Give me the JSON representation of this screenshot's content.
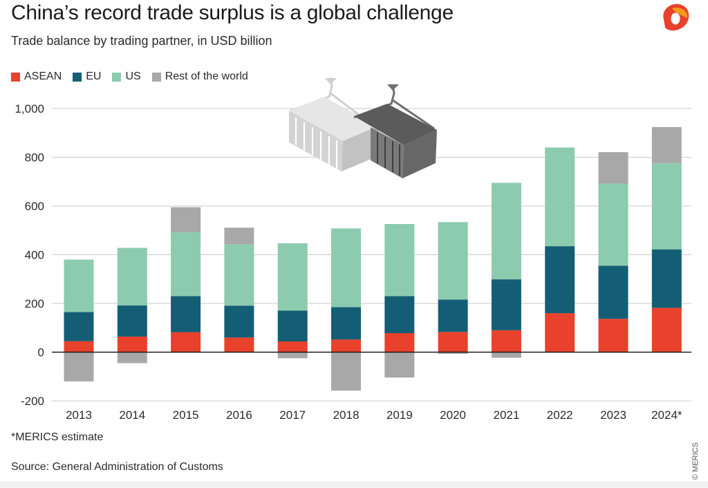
{
  "header": {
    "title": "China’s record trade surplus is a global challenge",
    "subtitle": "Trade balance by trading partner, in USD billion"
  },
  "footer": {
    "footnote": "*MERICS estimate",
    "source": "Source: General Administration of Customs",
    "copyright": "© MERICS"
  },
  "colors": {
    "ASEAN": "#e8412c",
    "EU": "#135e75",
    "US": "#8ccbae",
    "Rest of the world": "#a8a8a8"
  },
  "icons": [
    "merics-logo-icon",
    "shipping-containers-icon"
  ],
  "chart_data": {
    "type": "bar",
    "stacked": true,
    "categories": [
      "2013",
      "2014",
      "2015",
      "2016",
      "2017",
      "2018",
      "2019",
      "2020",
      "2021",
      "2022",
      "2023",
      "2024*"
    ],
    "series": [
      {
        "name": "ASEAN",
        "values": [
          45,
          64,
          82,
          60,
          44,
          52,
          78,
          83,
          90,
          160,
          137,
          182
        ]
      },
      {
        "name": "EU",
        "values": [
          120,
          128,
          148,
          131,
          127,
          133,
          152,
          133,
          209,
          275,
          218,
          240
        ]
      },
      {
        "name": "US",
        "values": [
          215,
          236,
          262,
          252,
          276,
          323,
          296,
          318,
          396,
          405,
          337,
          353
        ]
      },
      {
        "name": "Rest of the world",
        "values": [
          -120,
          -45,
          103,
          68,
          -25,
          -158,
          -104,
          -7,
          -23,
          0,
          129,
          149
        ]
      }
    ],
    "y_ticks": [
      "-200",
      "0",
      "200",
      "400",
      "600",
      "800",
      "1,000"
    ],
    "ylim": [
      -200,
      1000
    ],
    "grid": true,
    "legend": "top-left",
    "title": "",
    "xlabel": "",
    "ylabel": ""
  }
}
